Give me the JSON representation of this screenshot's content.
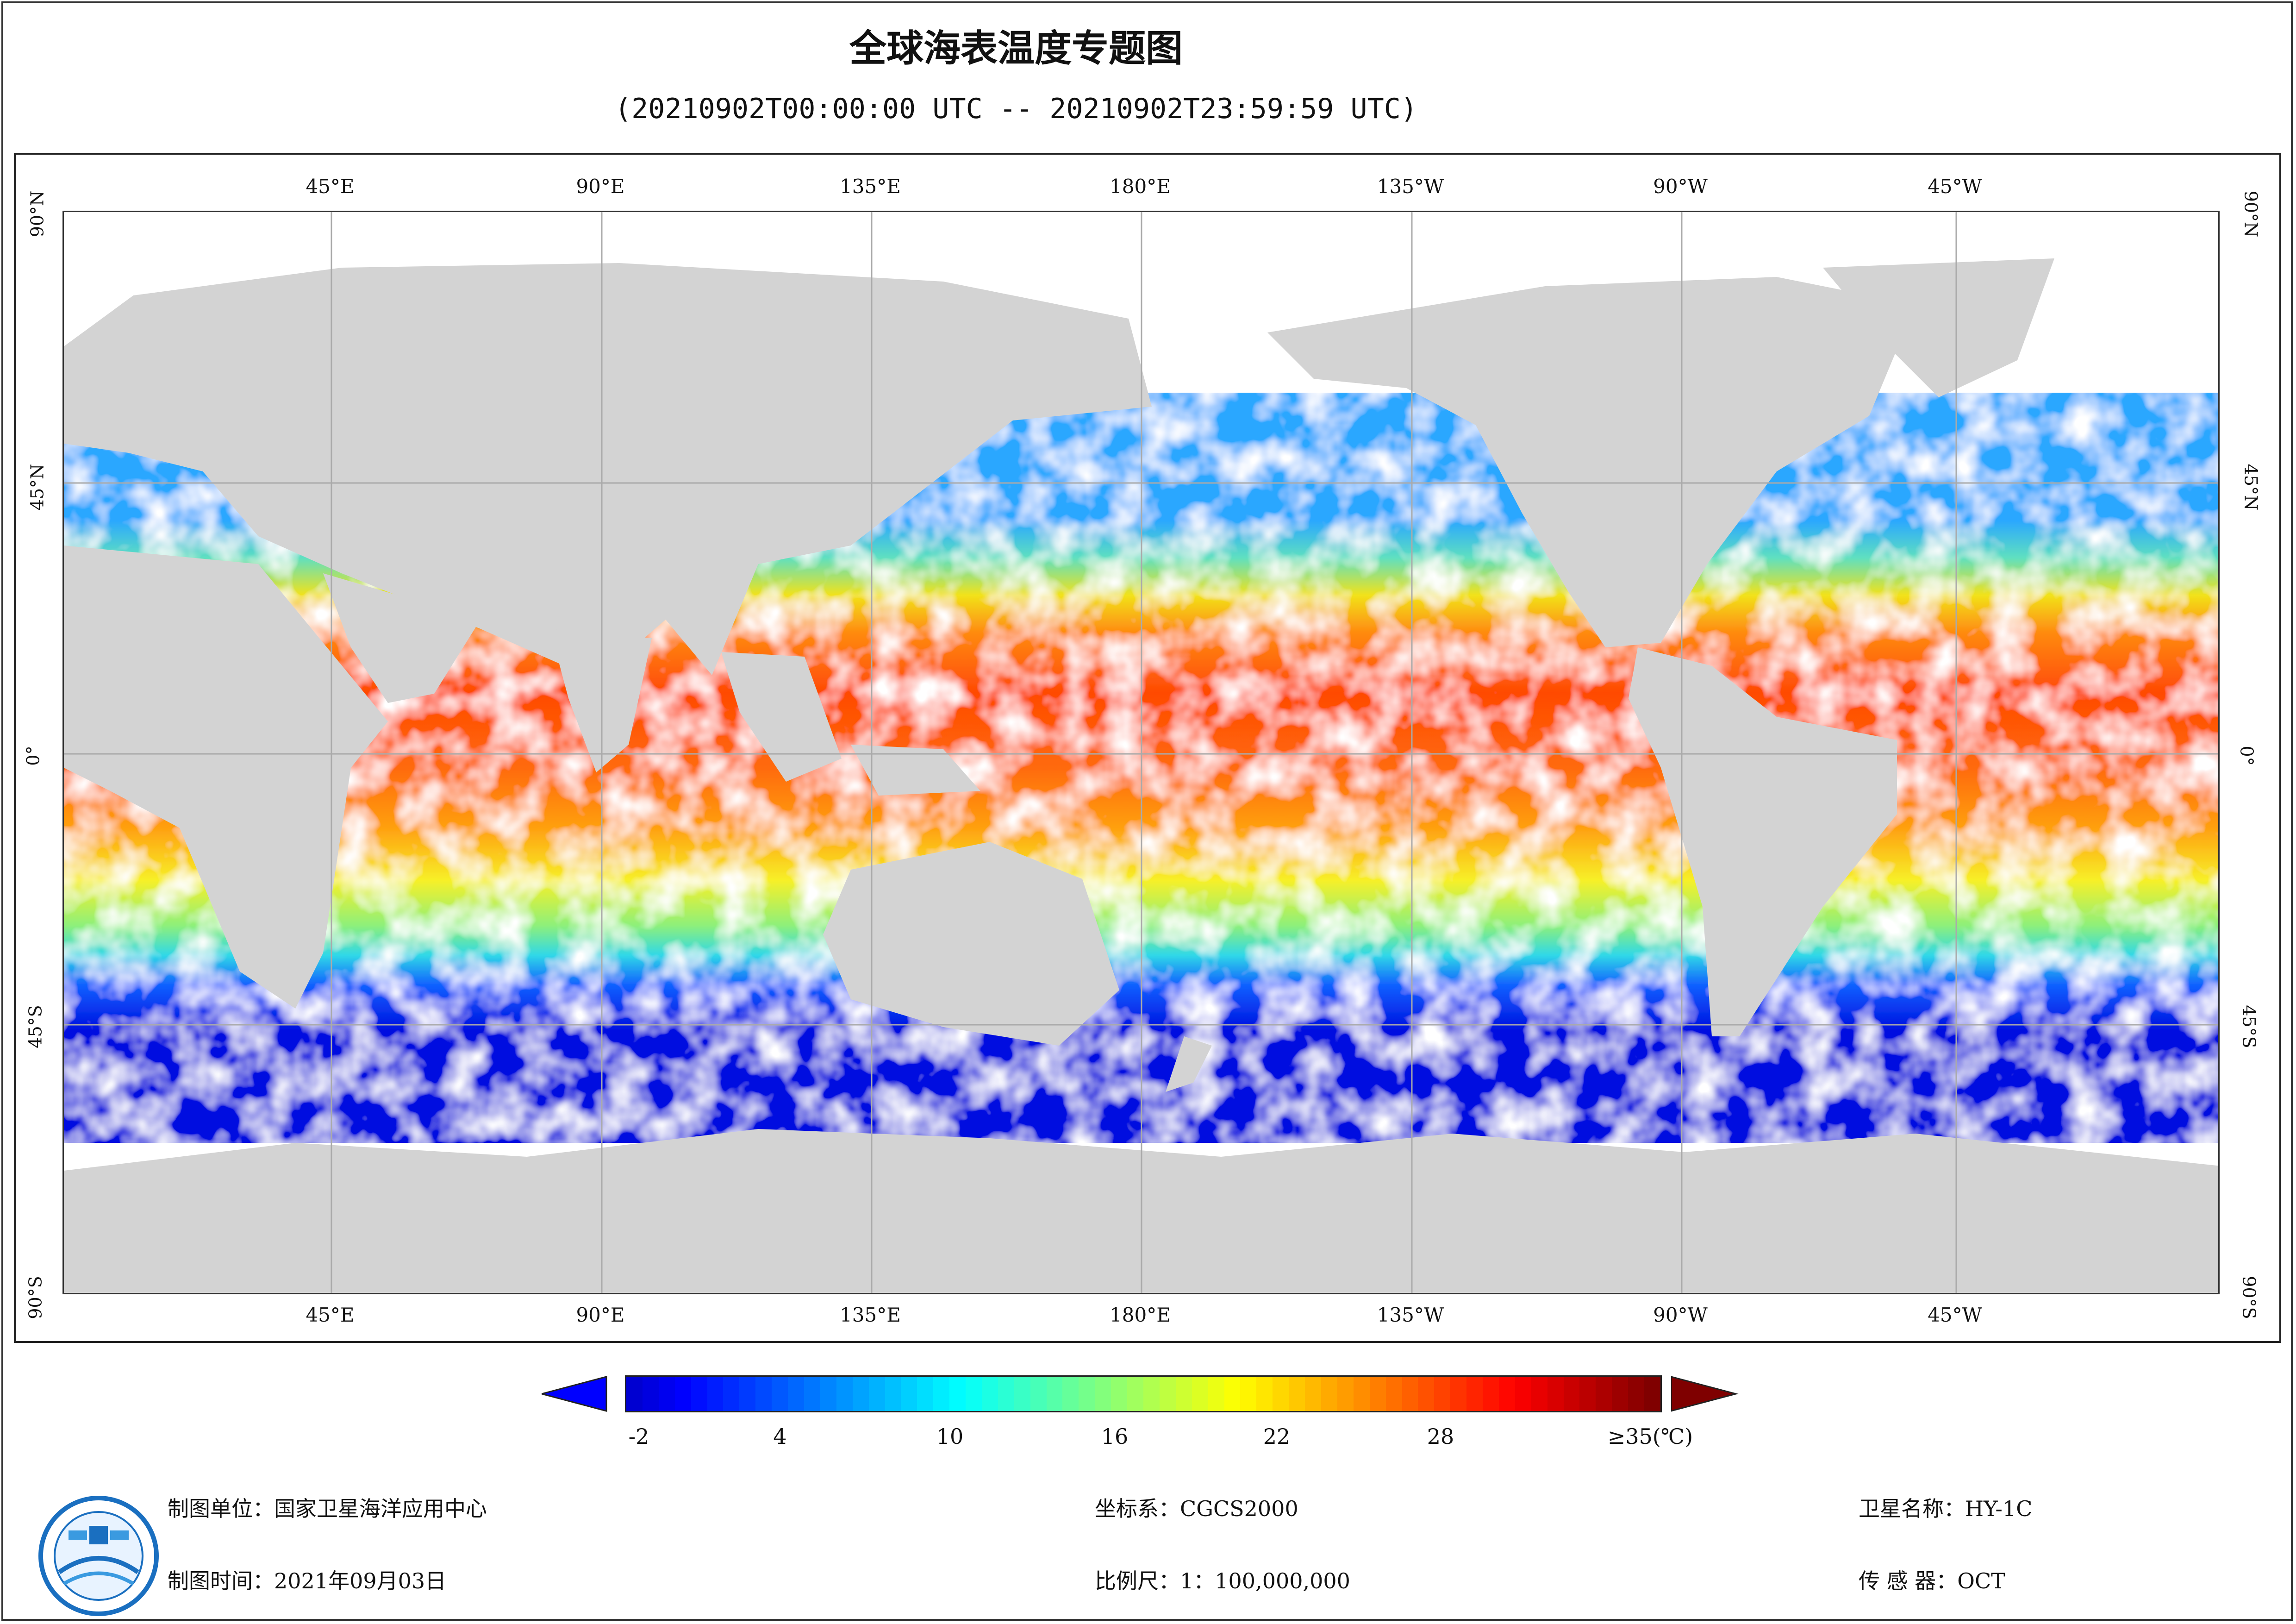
{
  "header": {
    "title": "全球海表温度专题图",
    "subtitle": "(20210902T00:00:00 UTC -- 20210902T23:59:59 UTC)"
  },
  "map": {
    "lon_labels": [
      "45°E",
      "90°E",
      "135°E",
      "180°E",
      "135°W",
      "90°W",
      "45°W"
    ],
    "lat_labels": [
      "90°N",
      "45°N",
      "0°",
      "45°S",
      "90°S"
    ],
    "lon_range": [
      0,
      360
    ],
    "lat_range": [
      -90,
      90
    ],
    "grid_step_deg": 45,
    "land_color": "#d3d3d3",
    "nodata_color": "#ffffff"
  },
  "colorbar": {
    "ticks": [
      "-2",
      "4",
      "10",
      "16",
      "22",
      "28",
      "≥35(℃)"
    ],
    "min": -2,
    "max": 35,
    "under_color": "#0000ff",
    "over_color": "#7f0000"
  },
  "footer": {
    "unit_label": "制图单位：国家卫星海洋应用中心",
    "time_label": "制图时间：2021年09月03日",
    "crs_label": "坐标系：CGCS2000",
    "scale_label": "比例尺：1：100,000,000",
    "satellite_label": "卫星名称：HY-1C",
    "sensor_label": "传 感 器：OCT"
  }
}
